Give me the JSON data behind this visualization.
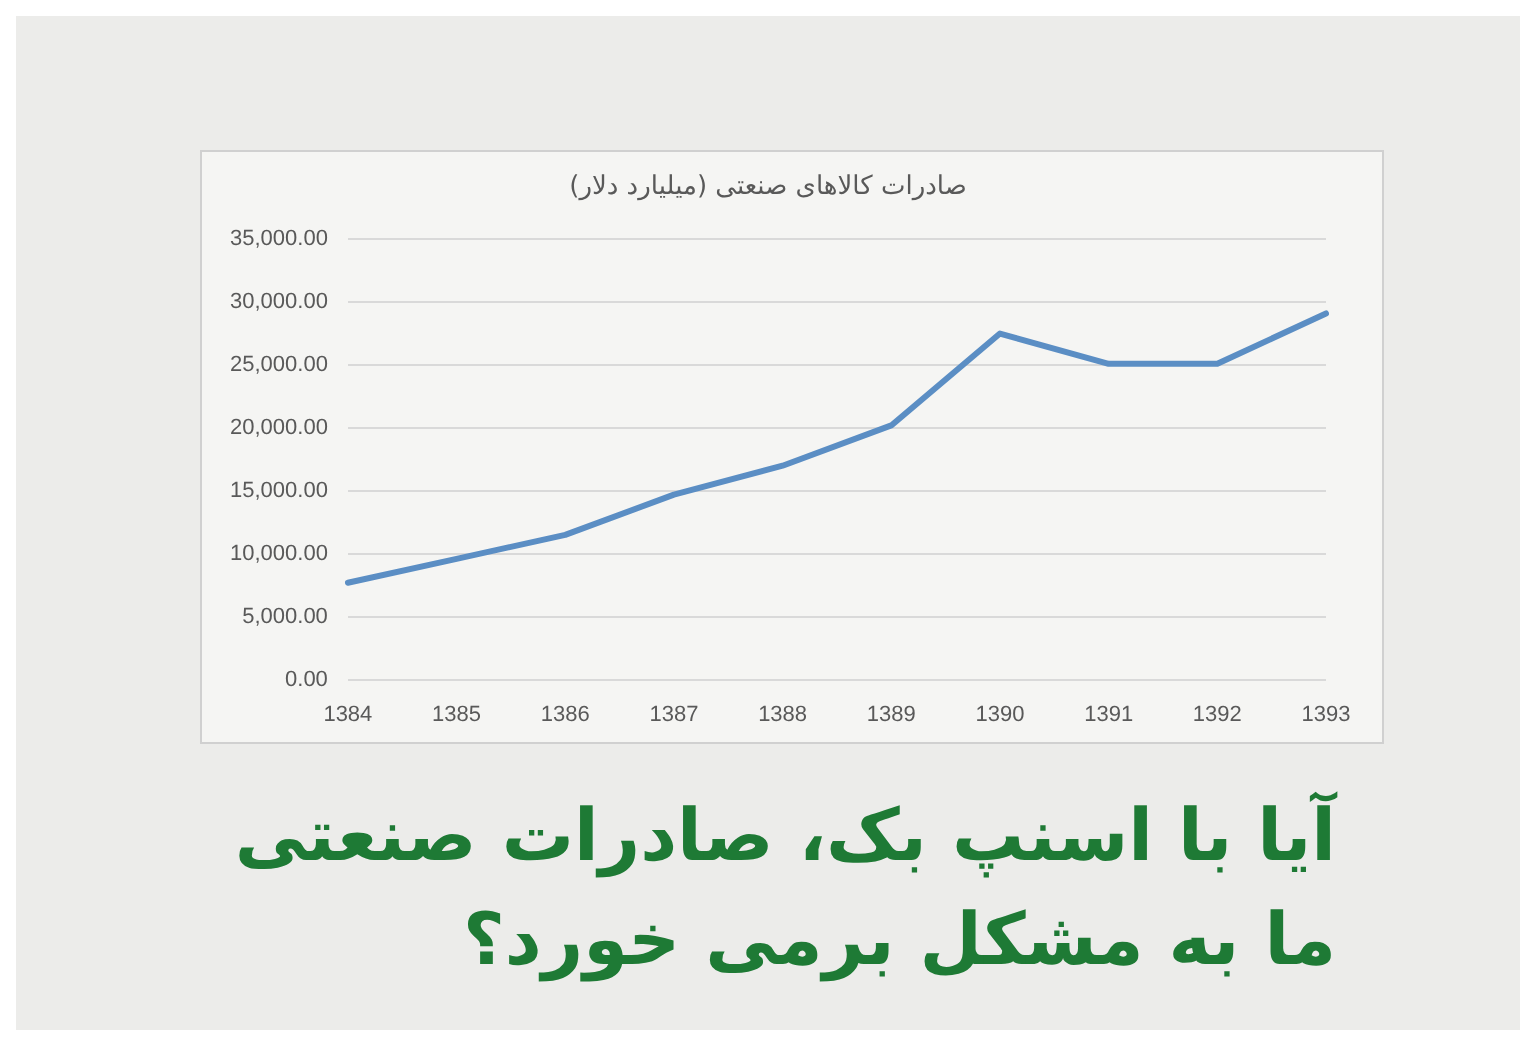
{
  "chart_data": {
    "type": "line",
    "title": "صادرات کالاهای صنعتی (میلیارد دلار)",
    "categories": [
      "1384",
      "1385",
      "1386",
      "1387",
      "1388",
      "1389",
      "1390",
      "1391",
      "1392",
      "1393"
    ],
    "series": [
      {
        "color": "#5b8ec4",
        "values": [
          7700,
          9600,
          11500,
          14700,
          17000,
          20200,
          27500,
          25100,
          25100,
          29100
        ]
      }
    ],
    "ylim": [
      0,
      35000
    ],
    "yticks": [
      {
        "value": 0,
        "label": "0.00"
      },
      {
        "value": 5000,
        "label": "5,000.00"
      },
      {
        "value": 10000,
        "label": "10,000.00"
      },
      {
        "value": 15000,
        "label": "15,000.00"
      },
      {
        "value": 20000,
        "label": "20,000.00"
      },
      {
        "value": 25000,
        "label": "25,000.00"
      },
      {
        "value": 30000,
        "label": "30,000.00"
      },
      {
        "value": 35000,
        "label": "35,000.00"
      }
    ],
    "grid": "y",
    "legend": false,
    "marker": "none",
    "line_style": "solid",
    "annotations": [
      "آیا با اسنپ بک، صادرات صنعتی ما به مشکل برمی خورد؟"
    ]
  }
}
